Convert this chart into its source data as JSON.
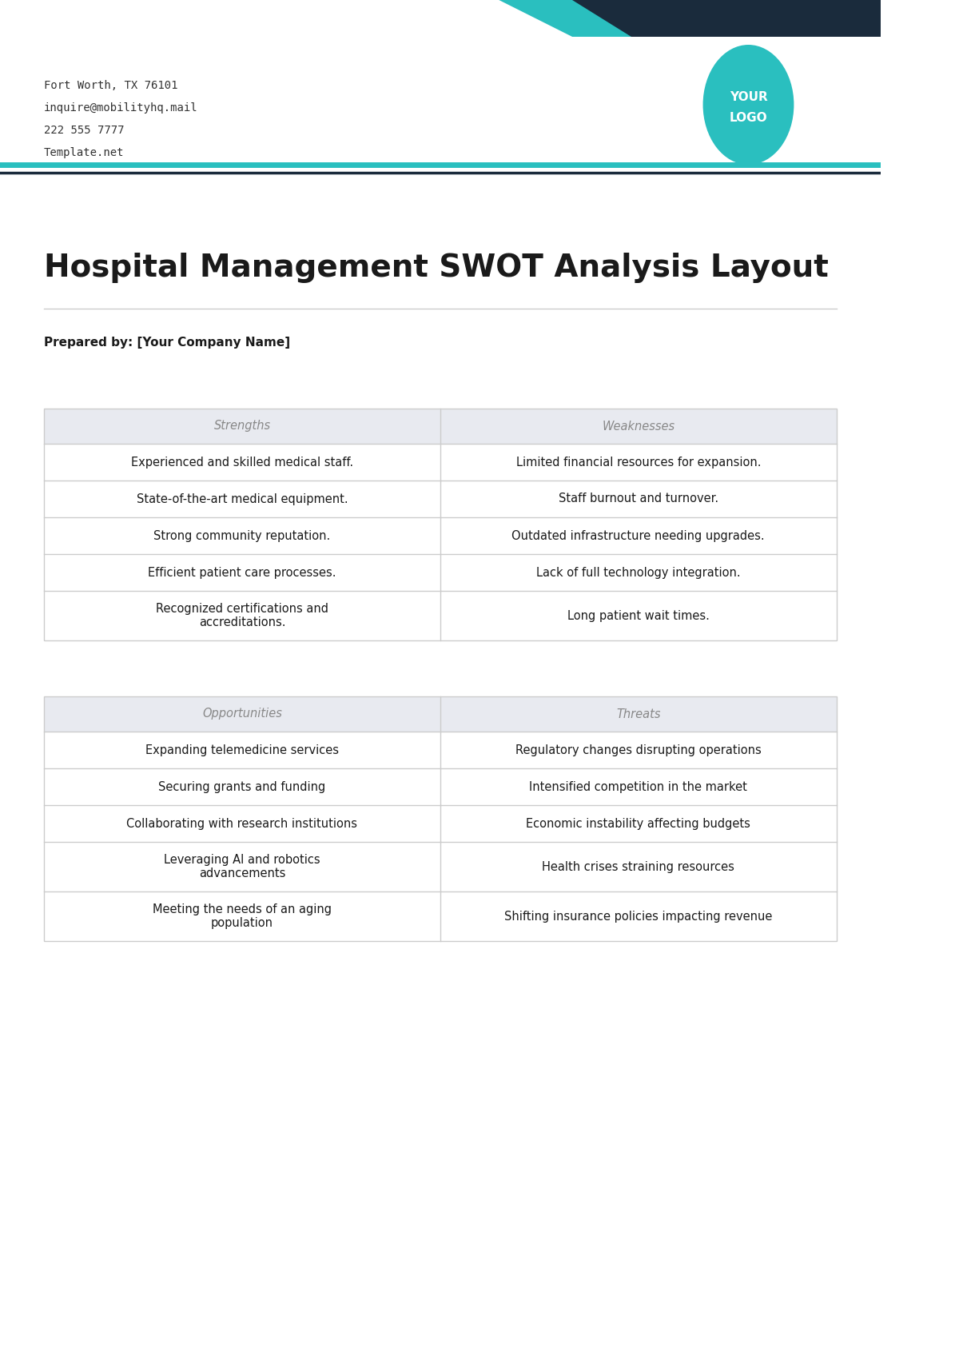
{
  "page_bg": "#ffffff",
  "header_teal": "#2abfbf",
  "header_dark": "#1a2b3c",
  "teal_line_color": "#2abfbf",
  "dark_line_color": "#1a2b3c",
  "contact_lines": [
    "Fort Worth, TX 76101",
    "inquire@mobilityhq.mail",
    "222 555 7777",
    "Template.net"
  ],
  "contact_font_size": 10,
  "contact_color": "#333333",
  "logo_text": "YOUR\nLOGO",
  "logo_bg": "#2abfbf",
  "logo_text_color": "#ffffff",
  "title": "Hospital Management SWOT Analysis Layout",
  "title_fontsize": 28,
  "title_color": "#1a1a1a",
  "prepared_by": "Prepared by: [Your Company Name]",
  "prepared_fontsize": 11,
  "prepared_color": "#1a1a1a",
  "table_header_bg": "#e8eaf0",
  "table_header_text_color": "#888888",
  "table_border_color": "#cccccc",
  "table_cell_bg": "#ffffff",
  "table_text_color": "#1a1a1a",
  "table_header_fontsize": 10.5,
  "table_cell_fontsize": 10.5,
  "sw_headers": [
    "Strengths",
    "Weaknesses"
  ],
  "sw_rows": [
    [
      "Experienced and skilled medical staff.",
      "Limited financial resources for expansion."
    ],
    [
      "State-of-the-art medical equipment.",
      "Staff burnout and turnover."
    ],
    [
      "Strong community reputation.",
      "Outdated infrastructure needing upgrades."
    ],
    [
      "Efficient patient care processes.",
      "Lack of full technology integration."
    ],
    [
      "Recognized certifications and\naccreditations.",
      "Long patient wait times."
    ]
  ],
  "ot_headers": [
    "Opportunities",
    "Threats"
  ],
  "ot_rows": [
    [
      "Expanding telemedicine services",
      "Regulatory changes disrupting operations"
    ],
    [
      "Securing grants and funding",
      "Intensified competition in the market"
    ],
    [
      "Collaborating with research institutions",
      "Economic instability affecting budgets"
    ],
    [
      "Leveraging AI and robotics\nadvancements",
      "Health crises straining resources"
    ],
    [
      "Meeting the needs of an aging\npopulation",
      "Shifting insurance policies impacting revenue"
    ]
  ]
}
